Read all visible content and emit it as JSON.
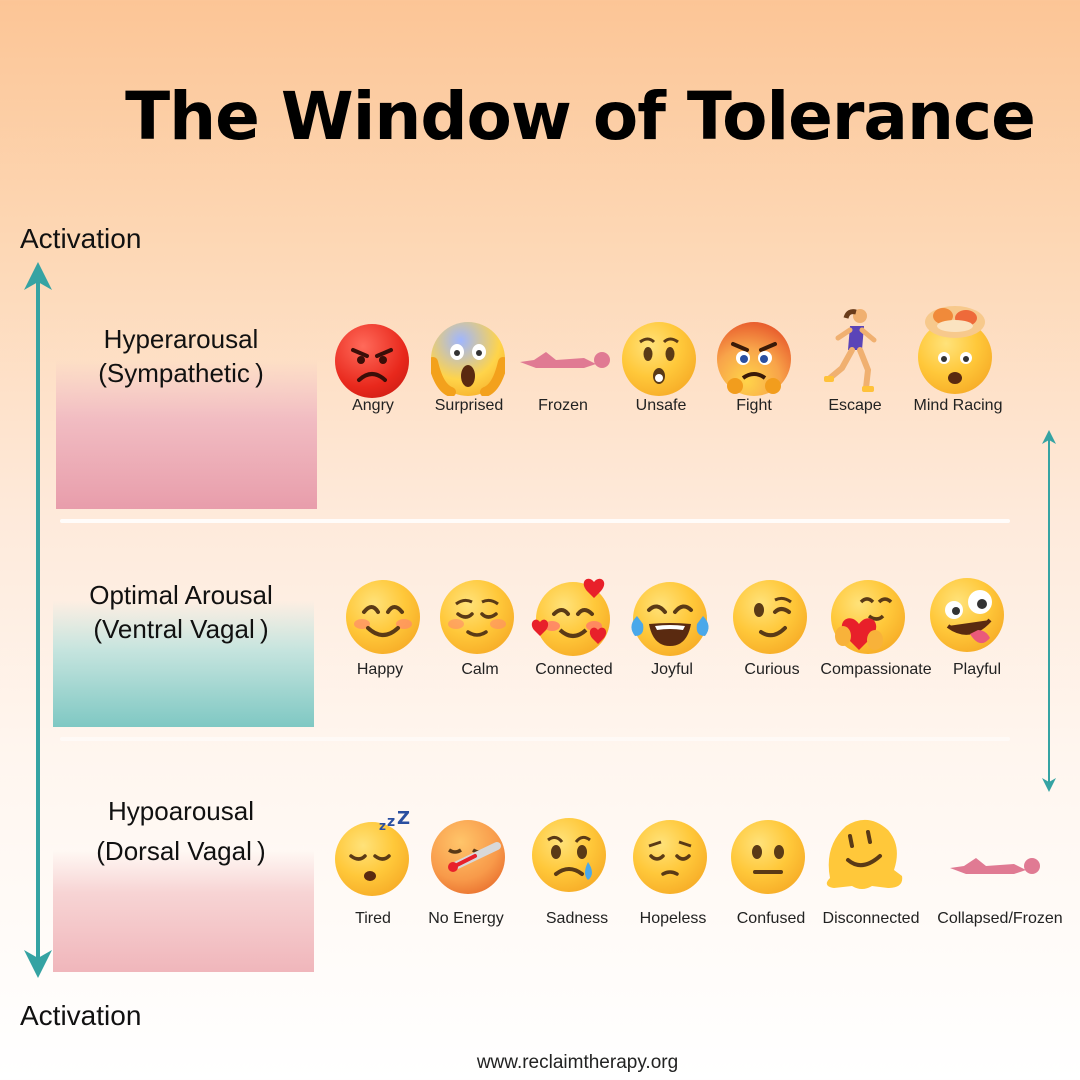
{
  "title": "The Window of Tolerance",
  "axis": {
    "top_label": "Activation",
    "bottom_label": "Activation"
  },
  "zones": [
    {
      "line1": "Hyperarousal",
      "line2": "(Sympathetic )",
      "states": [
        "Angry",
        "Surprised",
        "Frozen",
        "Unsafe",
        "Fight",
        "Escape",
        "Mind Racing"
      ]
    },
    {
      "line1": "Optimal Arousal",
      "line2": "(Ventral Vagal )",
      "states": [
        "Happy",
        "Calm",
        "Connected",
        "Joyful",
        "Curious",
        "Compassionate",
        "Playful"
      ]
    },
    {
      "line1": "Hypoarousal",
      "line2": "(Dorsal Vagal )",
      "states": [
        "Tired",
        "No Energy",
        "Sadness",
        "Hopeless",
        "Confused",
        "Disconnected",
        "Collapsed/Frozen"
      ]
    }
  ],
  "icons": {
    "hyper": [
      "angry-face-icon",
      "screaming-face-icon",
      "lying-figure-icon",
      "hushed-face-icon",
      "pouting-face-icon",
      "running-woman-icon",
      "exploding-head-icon"
    ],
    "optimal": [
      "smiling-face-icon",
      "relieved-face-icon",
      "smiling-face-with-hearts-icon",
      "tears-of-joy-face-icon",
      "winking-face-icon",
      "hugging-heart-face-icon",
      "zany-face-icon"
    ],
    "hypo": [
      "sleeping-face-icon",
      "face-with-thermometer-icon",
      "crying-face-icon",
      "pensive-face-icon",
      "neutral-face-icon",
      "melting-face-icon",
      "lying-figure-icon"
    ]
  },
  "colors": {
    "axis_arrow": "#35a3a3",
    "hyper_bar": "#e9a0ad",
    "optimal_bar": "#85cbc6",
    "hypo_bar": "#f0b8bd"
  },
  "footer": "www.reclaimtherapy.org"
}
